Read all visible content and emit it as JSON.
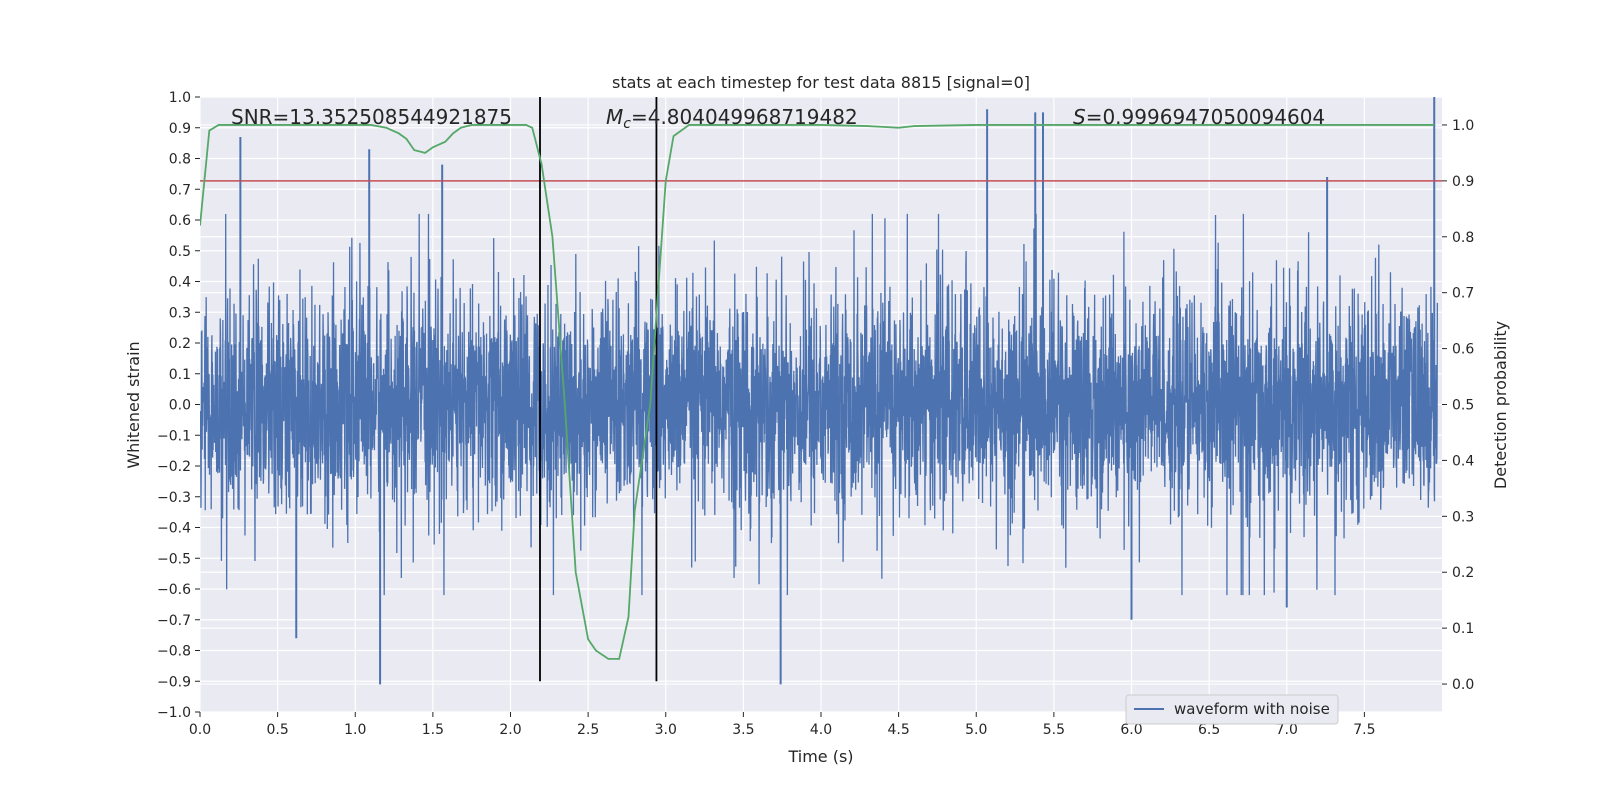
{
  "chart_data": {
    "type": "line",
    "title": "stats at each timestep for test data 8815 [signal=0]",
    "xlabel": "Time (s)",
    "ylabel": "Whitened strain",
    "y2label": "Detection probability",
    "xlim": [
      0.0,
      8.0
    ],
    "ylim": [
      -1.0,
      1.0
    ],
    "y2lim": [
      -0.05,
      1.05
    ],
    "xticks": [
      "0.0",
      "0.5",
      "1.0",
      "1.5",
      "2.0",
      "2.5",
      "3.0",
      "3.5",
      "4.0",
      "4.5",
      "5.0",
      "5.5",
      "6.0",
      "6.5",
      "7.0",
      "7.5"
    ],
    "xtick_values": [
      0.0,
      0.5,
      1.0,
      1.5,
      2.0,
      2.5,
      3.0,
      3.5,
      4.0,
      4.5,
      5.0,
      5.5,
      6.0,
      6.5,
      7.0,
      7.5
    ],
    "yticks": [
      "1.0",
      "0.9",
      "0.8",
      "0.7",
      "0.6",
      "0.5",
      "0.4",
      "0.3",
      "0.2",
      "0.1",
      "0.0",
      "−0.1",
      "−0.2",
      "−0.3",
      "−0.4",
      "−0.5",
      "−0.6",
      "−0.7",
      "−0.8",
      "−0.9",
      "−1.0"
    ],
    "ytick_values": [
      1.0,
      0.9,
      0.8,
      0.7,
      0.6,
      0.5,
      0.4,
      0.3,
      0.2,
      0.1,
      0.0,
      -0.1,
      -0.2,
      -0.3,
      -0.4,
      -0.5,
      -0.6,
      -0.7,
      -0.8,
      -0.9,
      -1.0
    ],
    "y2ticks": [
      "1.0",
      "0.9",
      "0.8",
      "0.7",
      "0.6",
      "0.5",
      "0.4",
      "0.3",
      "0.2",
      "0.1",
      "0.0"
    ],
    "y2tick_values": [
      1.0,
      0.9,
      0.8,
      0.7,
      0.6,
      0.5,
      0.4,
      0.3,
      0.2,
      0.1,
      0.0
    ],
    "grid": true,
    "legend_position": "lower-right",
    "annotations": {
      "snr": "SNR=13.352508544921875",
      "mc_symbol": "M",
      "mc_sub": "c",
      "mc_value": "=4.804049968719482",
      "s_symbol": "S",
      "s_value": "=0.9996947050094604"
    },
    "series": [
      {
        "name": "waveform with noise",
        "color": "#4c72b0",
        "axis": "left",
        "dense_noise": true,
        "amplitude_envelope": [
          -0.5,
          0.5
        ],
        "spikes": [
          {
            "x": 0.26,
            "y": 0.87
          },
          {
            "x": 1.09,
            "y": 0.83
          },
          {
            "x": 1.56,
            "y": 0.78
          },
          {
            "x": 5.07,
            "y": 0.96
          },
          {
            "x": 5.38,
            "y": 0.95
          },
          {
            "x": 5.43,
            "y": 0.95
          },
          {
            "x": 7.26,
            "y": 0.74
          },
          {
            "x": 7.95,
            "y": 1.0
          },
          {
            "x": 1.16,
            "y": -0.91
          },
          {
            "x": 3.74,
            "y": -0.91
          },
          {
            "x": 0.62,
            "y": -0.76
          },
          {
            "x": 6.0,
            "y": -0.7
          },
          {
            "x": 7.0,
            "y": -0.66
          }
        ]
      },
      {
        "name": "detection probability",
        "color": "#55a868",
        "axis": "right",
        "x": [
          0.0,
          0.06,
          0.12,
          0.2,
          0.3,
          0.5,
          0.8,
          1.0,
          1.1,
          1.2,
          1.28,
          1.33,
          1.38,
          1.45,
          1.5,
          1.58,
          1.63,
          1.68,
          1.75,
          1.85,
          2.0,
          2.1,
          2.14,
          2.2,
          2.27,
          2.35,
          2.42,
          2.5,
          2.55,
          2.63,
          2.7,
          2.76,
          2.8,
          2.9,
          3.0,
          3.05,
          3.15,
          3.3,
          4.0,
          4.3,
          4.5,
          4.6,
          5.0,
          6.0,
          7.0,
          7.5,
          7.95
        ],
        "y": [
          0.82,
          0.99,
          1.0,
          1.0,
          1.0,
          1.0,
          1.0,
          1.0,
          1.0,
          0.995,
          0.985,
          0.975,
          0.955,
          0.95,
          0.96,
          0.97,
          0.985,
          0.995,
          1.0,
          1.0,
          1.0,
          1.0,
          0.995,
          0.93,
          0.8,
          0.5,
          0.2,
          0.08,
          0.06,
          0.045,
          0.045,
          0.12,
          0.31,
          0.5,
          0.9,
          0.98,
          1.0,
          1.0,
          1.0,
          0.998,
          0.995,
          0.998,
          1.0,
          1.0,
          1.0,
          1.0,
          1.0
        ]
      },
      {
        "color": "#c44e52",
        "axis": "right",
        "type": "hline",
        "y": 0.9
      },
      {
        "color": "#000000",
        "axis": "left",
        "type": "vline",
        "x": 2.19,
        "ymin": -0.9,
        "ymax": 1.0
      },
      {
        "color": "#000000",
        "axis": "left",
        "type": "vline",
        "x": 2.94,
        "ymin": -0.9,
        "ymax": 1.0
      }
    ]
  }
}
